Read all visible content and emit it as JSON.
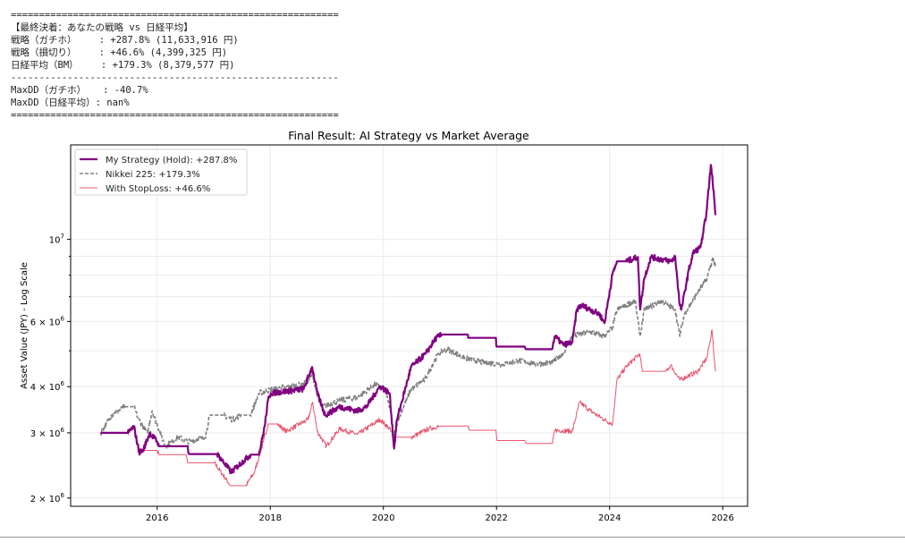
{
  "console": {
    "lines": [
      "==========================================================",
      "【最終決着：あなたの戦略 vs 日経平均】",
      "戦略（ガチホ）    : +287.8% (11,633,916 円)",
      "戦略（損切り）    : +46.6% (4,399,325 円)",
      "日経平均（BM）    : +179.3% (8,379,577 円)",
      "----------------------------------------------------------",
      "MaxDD（ガチホ）   : -40.7%",
      "MaxDD（日経平均）: nan%",
      "=========================================================="
    ]
  },
  "chart_data": {
    "type": "line",
    "title": "Final Result: AI Strategy vs Market Average",
    "xlabel": "",
    "ylabel": "Asset Value (JPY) - Log Scale",
    "yscale": "log",
    "xlim": [
      2014.47,
      2026.44
    ],
    "ylim": [
      1900000,
      18000000
    ],
    "grid": true,
    "legend_position": "top-left",
    "xticks": [
      2016,
      2018,
      2020,
      2022,
      2024,
      2026
    ],
    "xtick_labels": [
      "2016",
      "2018",
      "2020",
      "2022",
      "2024",
      "2026"
    ],
    "yticks": [
      {
        "value": 2000000,
        "base": "2",
        "exp": "6"
      },
      {
        "value": 3000000,
        "base": "3",
        "exp": "6"
      },
      {
        "value": 4000000,
        "base": "4",
        "exp": "6"
      },
      {
        "value": 6000000,
        "base": "6",
        "exp": "6"
      },
      {
        "value": 10000000,
        "base": "",
        "exp": "7"
      }
    ],
    "minor_grid": [
      5000000,
      7000000,
      8000000,
      9000000
    ],
    "series": [
      {
        "name": "My Strategy (Hold): +287.8%",
        "color": "#800080",
        "style": "solid",
        "points": [
          [
            2015.0,
            3000000.0
          ],
          [
            2015.48,
            3000000.0
          ],
          [
            2015.59,
            3120000.0
          ],
          [
            2015.68,
            2660000.0
          ],
          [
            2015.75,
            2690000.0
          ],
          [
            2015.87,
            3000000.0
          ],
          [
            2016.0,
            2840000.0
          ],
          [
            2016.03,
            2760000.0
          ],
          [
            2016.54,
            2760000.0
          ],
          [
            2016.56,
            2630000.0
          ],
          [
            2017.06,
            2630000.0
          ],
          [
            2017.31,
            2350000.0
          ],
          [
            2017.65,
            2620000.0
          ],
          [
            2017.8,
            2620000.0
          ],
          [
            2017.9,
            3120000.0
          ],
          [
            2017.96,
            3670000.0
          ],
          [
            2018.01,
            3840000.0
          ],
          [
            2018.59,
            3940000.0
          ],
          [
            2018.74,
            4520000.0
          ],
          [
            2018.83,
            3840000.0
          ],
          [
            2018.97,
            3350000.0
          ],
          [
            2019.23,
            3530000.0
          ],
          [
            2019.54,
            3440000.0
          ],
          [
            2019.7,
            3530000.0
          ],
          [
            2019.94,
            4010000.0
          ],
          [
            2020.11,
            3840000.0
          ],
          [
            2020.19,
            2720000.0
          ],
          [
            2020.24,
            3260000.0
          ],
          [
            2020.49,
            4520000.0
          ],
          [
            2020.75,
            4910000.0
          ],
          [
            2020.92,
            5390000.0
          ],
          [
            2021.03,
            5530000.0
          ],
          [
            2021.49,
            5530000.0
          ],
          [
            2021.5,
            5420000.0
          ],
          [
            2021.99,
            5420000.0
          ],
          [
            2022.0,
            5130000.0
          ],
          [
            2022.5,
            5130000.0
          ],
          [
            2022.52,
            5050000.0
          ],
          [
            2022.98,
            5050000.0
          ],
          [
            2023.03,
            5470000.0
          ],
          [
            2023.18,
            5190000.0
          ],
          [
            2023.34,
            5270000.0
          ],
          [
            2023.42,
            6460000.0
          ],
          [
            2023.5,
            6640000.0
          ],
          [
            2023.82,
            6280000.0
          ],
          [
            2023.91,
            5940000.0
          ],
          [
            2024.05,
            8040000.0
          ],
          [
            2024.13,
            8720000.0
          ],
          [
            2024.29,
            8720000.0
          ],
          [
            2024.5,
            8960000.0
          ],
          [
            2024.54,
            6460000.0
          ],
          [
            2024.61,
            7820000.0
          ],
          [
            2024.73,
            8960000.0
          ],
          [
            2025.08,
            8720000.0
          ],
          [
            2025.16,
            8960000.0
          ],
          [
            2025.24,
            6640000.0
          ],
          [
            2025.27,
            6460000.0
          ],
          [
            2025.4,
            8260000.0
          ],
          [
            2025.48,
            9210000.0
          ],
          [
            2025.59,
            9470000.0
          ],
          [
            2025.64,
            10000000.0
          ],
          [
            2025.72,
            12100000.0
          ],
          [
            2025.79,
            15900000.0
          ],
          [
            2025.84,
            13500000.0
          ],
          [
            2025.87,
            11630000.0
          ]
        ]
      },
      {
        "name": "Nikkei 225: +179.3%",
        "color": "#808080",
        "style": "dashed",
        "points": [
          [
            2015.0,
            3000000.0
          ],
          [
            2015.19,
            3350000.0
          ],
          [
            2015.43,
            3530000.0
          ],
          [
            2015.59,
            3530000.0
          ],
          [
            2015.67,
            3260000.0
          ],
          [
            2015.83,
            3000000.0
          ],
          [
            2015.91,
            3440000.0
          ],
          [
            2016.14,
            2760000.0
          ],
          [
            2016.38,
            2920000.0
          ],
          [
            2016.54,
            2840000.0
          ],
          [
            2016.85,
            2920000.0
          ],
          [
            2016.93,
            3350000.0
          ],
          [
            2017.17,
            3350000.0
          ],
          [
            2017.33,
            3260000.0
          ],
          [
            2017.49,
            3350000.0
          ],
          [
            2017.65,
            3350000.0
          ],
          [
            2017.8,
            3840000.0
          ],
          [
            2018.04,
            3940000.0
          ],
          [
            2018.59,
            4060000.0
          ],
          [
            2018.75,
            4280000.0
          ],
          [
            2018.86,
            3670000.0
          ],
          [
            2018.91,
            3530000.0
          ],
          [
            2019.23,
            3670000.0
          ],
          [
            2019.54,
            3740000.0
          ],
          [
            2019.86,
            4060000.0
          ],
          [
            2020.02,
            3940000.0
          ],
          [
            2020.13,
            3440000.0
          ],
          [
            2020.18,
            2920000.0
          ],
          [
            2020.26,
            3260000.0
          ],
          [
            2020.49,
            3940000.0
          ],
          [
            2020.73,
            4170000.0
          ],
          [
            2020.97,
            4910000.0
          ],
          [
            2021.13,
            5050000.0
          ],
          [
            2021.44,
            4780000.0
          ],
          [
            2021.76,
            4650000.0
          ],
          [
            2022.08,
            4600000.0
          ],
          [
            2022.39,
            4700000.0
          ],
          [
            2022.71,
            4600000.0
          ],
          [
            2022.99,
            4650000.0
          ],
          [
            2023.18,
            4910000.0
          ],
          [
            2023.34,
            5470000.0
          ],
          [
            2023.66,
            5630000.0
          ],
          [
            2023.9,
            5470000.0
          ],
          [
            2024.05,
            5780000.0
          ],
          [
            2024.13,
            6460000.0
          ],
          [
            2024.29,
            6640000.0
          ],
          [
            2024.45,
            6820000.0
          ],
          [
            2024.54,
            5470000.0
          ],
          [
            2024.61,
            6460000.0
          ],
          [
            2024.92,
            6820000.0
          ],
          [
            2025.16,
            6460000.0
          ],
          [
            2025.24,
            5470000.0
          ],
          [
            2025.32,
            6280000.0
          ],
          [
            2025.56,
            7200000.0
          ],
          [
            2025.72,
            7820000.0
          ],
          [
            2025.83,
            8960000.0
          ],
          [
            2025.87,
            8380000.0
          ]
        ]
      },
      {
        "name": "With StopLoss: +46.6%",
        "color": "#e8546e",
        "style": "solid",
        "points": [
          [
            2015.0,
            3000000.0
          ],
          [
            2015.48,
            3000000.0
          ],
          [
            2015.59,
            3120000.0
          ],
          [
            2015.68,
            2690000.0
          ],
          [
            2016.0,
            2690000.0
          ],
          [
            2016.03,
            2620000.0
          ],
          [
            2016.51,
            2620000.0
          ],
          [
            2016.54,
            2490000.0
          ],
          [
            2017.01,
            2490000.0
          ],
          [
            2017.3,
            2160000.0
          ],
          [
            2017.57,
            2160000.0
          ],
          [
            2017.72,
            2350000.0
          ],
          [
            2017.88,
            2840000.0
          ],
          [
            2017.96,
            3170000.0
          ],
          [
            2018.12,
            3170000.0
          ],
          [
            2018.28,
            3030000.0
          ],
          [
            2018.67,
            3260000.0
          ],
          [
            2018.75,
            3630000.0
          ],
          [
            2018.83,
            3030000.0
          ],
          [
            2018.99,
            2760000.0
          ],
          [
            2019.23,
            3080000.0
          ],
          [
            2019.54,
            2970000.0
          ],
          [
            2019.94,
            3260000.0
          ],
          [
            2020.11,
            3080000.0
          ],
          [
            2020.18,
            2920000.0
          ],
          [
            2020.49,
            2920000.0
          ],
          [
            2020.81,
            3080000.0
          ],
          [
            2020.97,
            3120000.0
          ],
          [
            2021.02,
            3130000.0
          ],
          [
            2021.49,
            3130000.0
          ],
          [
            2021.52,
            3050000.0
          ],
          [
            2021.99,
            3050000.0
          ],
          [
            2022.01,
            2860000.0
          ],
          [
            2022.5,
            2860000.0
          ],
          [
            2022.52,
            2810000.0
          ],
          [
            2022.99,
            2810000.0
          ],
          [
            2023.03,
            3050000.0
          ],
          [
            2023.34,
            3030000.0
          ],
          [
            2023.47,
            3630000.0
          ],
          [
            2023.66,
            3440000.0
          ],
          [
            2023.9,
            3260000.0
          ],
          [
            2024.05,
            3170000.0
          ],
          [
            2024.13,
            4170000.0
          ],
          [
            2024.29,
            4520000.0
          ],
          [
            2024.53,
            4910000.0
          ],
          [
            2024.58,
            4400000.0
          ],
          [
            2025.0,
            4400000.0
          ],
          [
            2025.08,
            4570000.0
          ],
          [
            2025.24,
            4170000.0
          ],
          [
            2025.56,
            4400000.0
          ],
          [
            2025.72,
            4780000.0
          ],
          [
            2025.81,
            5690000.0
          ],
          [
            2025.87,
            4400000.0
          ]
        ]
      }
    ]
  }
}
